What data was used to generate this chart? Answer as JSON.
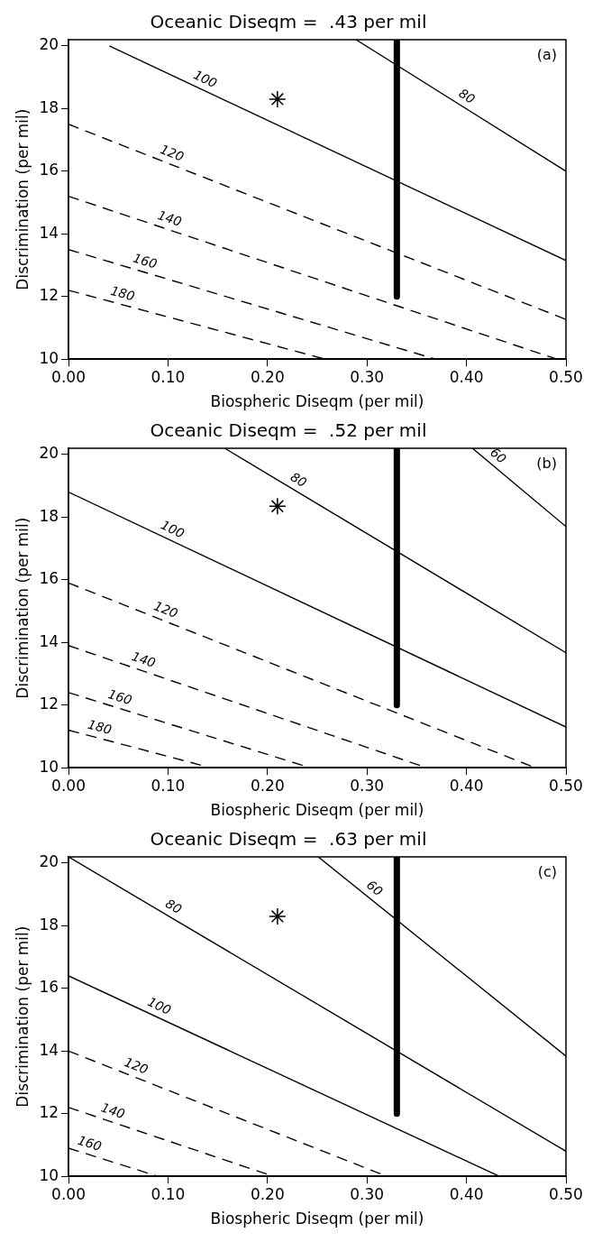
{
  "chart_data": [
    {
      "type": "line",
      "title": "Oceanic Diseqm =  .43 per mil",
      "xlabel": "Biospheric Diseqm (per mil)",
      "ylabel": "Discrimination (per mil)",
      "annotations": [
        "(a)"
      ],
      "xlim": [
        0,
        0.5
      ],
      "xticks": [
        {
          "value": 0,
          "label": "0.00"
        },
        {
          "value": 0.1,
          "label": "0.10"
        },
        {
          "value": 0.2,
          "label": "0.20"
        },
        {
          "value": 0.3,
          "label": "0.30"
        },
        {
          "value": 0.4,
          "label": "0.40"
        },
        {
          "value": 0.5,
          "label": "0.50"
        }
      ],
      "ylim": [
        10,
        20.2
      ],
      "yticks": [
        10,
        12,
        14,
        16,
        18,
        20
      ],
      "series": [
        {
          "name": "80",
          "type": "line",
          "line_style": "solid",
          "color": "#000000",
          "x": [
            0.289,
            0.5
          ],
          "values": [
            20.2,
            16.0
          ]
        },
        {
          "name": "100",
          "type": "line",
          "line_style": "solid",
          "color": "#000000",
          "x": [
            0.041,
            0.5
          ],
          "values": [
            20,
            13.15
          ]
        },
        {
          "name": "120",
          "type": "line",
          "line_style": "dashed",
          "color": "#000000",
          "x": [
            0,
            0.5
          ],
          "values": [
            17.5,
            11.27
          ]
        },
        {
          "name": "140",
          "type": "line",
          "line_style": "dashed",
          "color": "#000000",
          "x": [
            0,
            0.491
          ],
          "values": [
            15.2,
            10
          ]
        },
        {
          "name": "160",
          "type": "line",
          "line_style": "dashed",
          "color": "#000000",
          "x": [
            0,
            0.369
          ],
          "values": [
            13.5,
            10
          ]
        },
        {
          "name": "180",
          "type": "line",
          "line_style": "dashed",
          "color": "#000000",
          "x": [
            0,
            0.258
          ],
          "values": [
            12.2,
            10
          ]
        },
        {
          "type": "line",
          "line_style": "solid",
          "color": "#000000",
          "x": [
            0.33,
            0.33
          ],
          "values": [
            12,
            20.2
          ]
        },
        {
          "type": "scatter",
          "marker": "cross",
          "color": "#000000",
          "x": [
            0.21
          ],
          "values": [
            18.3
          ]
        }
      ]
    },
    {
      "type": "line",
      "title": "Oceanic Diseqm =  .52 per mil",
      "xlabel": "Biospheric Diseqm (per mil)",
      "ylabel": "Discrimination (per mil)",
      "annotations": [
        "(b)"
      ],
      "xlim": [
        0,
        0.5
      ],
      "xticks": [
        {
          "value": 0,
          "label": "0.00"
        },
        {
          "value": 0.1,
          "label": "0.10"
        },
        {
          "value": 0.2,
          "label": "0.20"
        },
        {
          "value": 0.3,
          "label": "0.30"
        },
        {
          "value": 0.4,
          "label": "0.40"
        },
        {
          "value": 0.5,
          "label": "0.50"
        }
      ],
      "ylim": [
        10,
        20.2
      ],
      "yticks": [
        10,
        12,
        14,
        16,
        18,
        20
      ],
      "series": [
        {
          "name": "60",
          "type": "line",
          "line_style": "solid",
          "color": "#000000",
          "x": [
            0.406,
            0.5
          ],
          "values": [
            20.2,
            17.7
          ]
        },
        {
          "name": "80",
          "type": "line",
          "line_style": "solid",
          "color": "#000000",
          "x": [
            0.157,
            0.5
          ],
          "values": [
            20.2,
            13.67
          ]
        },
        {
          "name": "100",
          "type": "line",
          "line_style": "solid",
          "color": "#000000",
          "x": [
            0,
            0.5
          ],
          "values": [
            18.8,
            11.3
          ]
        },
        {
          "name": "120",
          "type": "line",
          "line_style": "dashed",
          "color": "#000000",
          "x": [
            0,
            0.469
          ],
          "values": [
            15.9,
            10
          ]
        },
        {
          "name": "140",
          "type": "line",
          "line_style": "dashed",
          "color": "#000000",
          "x": [
            0,
            0.36
          ],
          "values": [
            13.9,
            10
          ]
        },
        {
          "name": "160",
          "type": "line",
          "line_style": "dashed",
          "color": "#000000",
          "x": [
            0,
            0.243
          ],
          "values": [
            12.4,
            10
          ]
        },
        {
          "name": "180",
          "type": "line",
          "line_style": "dashed",
          "color": "#000000",
          "x": [
            0,
            0.143
          ],
          "values": [
            11.2,
            10
          ]
        },
        {
          "type": "line",
          "line_style": "solid",
          "color": "#000000",
          "x": [
            0.33,
            0.33
          ],
          "values": [
            12,
            20.2
          ]
        },
        {
          "type": "scatter",
          "marker": "cross",
          "color": "#000000",
          "x": [
            0.21
          ],
          "values": [
            18.35
          ]
        }
      ]
    },
    {
      "type": "line",
      "title": "Oceanic Diseqm =  .63 per mil",
      "xlabel": "Biospheric Diseqm (per mil)",
      "ylabel": "Discrimination (per mil)",
      "annotations": [
        "(c)"
      ],
      "xlim": [
        0,
        0.5
      ],
      "xticks": [
        {
          "value": 0,
          "label": "0.00"
        },
        {
          "value": 0.1,
          "label": "0.10"
        },
        {
          "value": 0.2,
          "label": "0.20"
        },
        {
          "value": 0.3,
          "label": "0.30"
        },
        {
          "value": 0.4,
          "label": "0.40"
        },
        {
          "value": 0.5,
          "label": "0.50"
        }
      ],
      "ylim": [
        10,
        20.2
      ],
      "yticks": [
        10,
        12,
        14,
        16,
        18,
        20
      ],
      "series": [
        {
          "name": "60",
          "type": "line",
          "line_style": "solid",
          "color": "#000000",
          "x": [
            0.251,
            0.5
          ],
          "values": [
            20.2,
            13.84
          ]
        },
        {
          "name": "80",
          "type": "line",
          "line_style": "solid",
          "color": "#000000",
          "x": [
            0,
            0.5
          ],
          "values": [
            20.2,
            10.8
          ]
        },
        {
          "name": "100",
          "type": "line",
          "line_style": "solid",
          "color": "#000000",
          "x": [
            0,
            0.433
          ],
          "values": [
            16.4,
            10
          ]
        },
        {
          "name": "120",
          "type": "line",
          "line_style": "dashed",
          "color": "#000000",
          "x": [
            0,
            0.32
          ],
          "values": [
            14.0,
            10
          ]
        },
        {
          "name": "140",
          "type": "line",
          "line_style": "dashed",
          "color": "#000000",
          "x": [
            0,
            0.206
          ],
          "values": [
            12.2,
            10
          ]
        },
        {
          "name": "160",
          "type": "line",
          "line_style": "dashed",
          "color": "#000000",
          "x": [
            0,
            0.09
          ],
          "values": [
            10.9,
            10
          ]
        },
        {
          "type": "line",
          "line_style": "solid",
          "color": "#000000",
          "x": [
            0.33,
            0.33
          ],
          "values": [
            12,
            20.2
          ]
        },
        {
          "type": "scatter",
          "marker": "cross",
          "color": "#000000",
          "x": [
            0.21
          ],
          "values": [
            18.3
          ]
        }
      ]
    }
  ]
}
